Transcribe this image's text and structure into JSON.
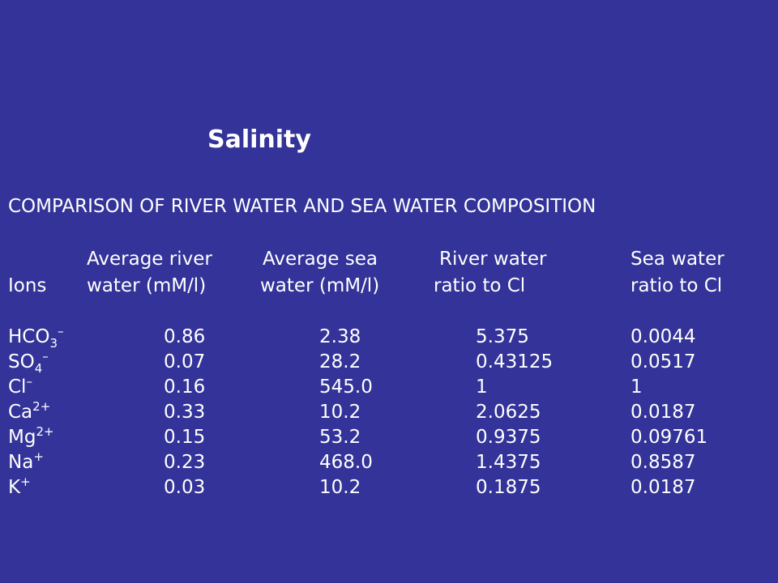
{
  "slide": {
    "title": "Salinity",
    "subtitle": "COMPARISON OF RIVER WATER AND SEA WATER COMPOSITION"
  },
  "table": {
    "header": {
      "ions": "Ions",
      "river_line1": "Average river",
      "river_line2": "water (mM/l)",
      "sea_line1": "Average sea",
      "sea_line2": "water (mM/l)",
      "river_ratio_line1": "River water",
      "river_ratio_line2": "ratio to Cl",
      "sea_ratio_line1": "Sea water",
      "sea_ratio_line2": "ratio to Cl"
    },
    "rows": [
      {
        "ion_base": "HCO",
        "ion_sub": "3",
        "ion_sup": "–",
        "river": "0.86",
        "sea": "2.38",
        "river_ratio": "5.375",
        "sea_ratio": "0.0044"
      },
      {
        "ion_base": "SO",
        "ion_sub": "4",
        "ion_sup": "–",
        "river": "0.07",
        "sea": "28.2",
        "river_ratio": "0.43125",
        "sea_ratio": "0.0517"
      },
      {
        "ion_base": "Cl",
        "ion_sub": "",
        "ion_sup": "–",
        "river": "0.16",
        "sea": "545.0",
        "river_ratio": "1",
        "sea_ratio": "1"
      },
      {
        "ion_base": "Ca",
        "ion_sub": "",
        "ion_sup": "2+",
        "river": "0.33",
        "sea": "10.2",
        "river_ratio": "2.0625",
        "sea_ratio": "0.0187"
      },
      {
        "ion_base": "Mg",
        "ion_sub": "",
        "ion_sup": "2+",
        "river": "0.15",
        "sea": "53.2",
        "river_ratio": "0.9375",
        "sea_ratio": "0.09761"
      },
      {
        "ion_base": "Na",
        "ion_sub": "",
        "ion_sup": "+",
        "river": "0.23",
        "sea": "468.0",
        "river_ratio": "1.4375",
        "sea_ratio": "0.8587"
      },
      {
        "ion_base": "K",
        "ion_sub": "",
        "ion_sup": "+",
        "river": "0.03",
        "sea": "10.2",
        "river_ratio": "0.1875",
        "sea_ratio": "0.0187"
      }
    ]
  }
}
